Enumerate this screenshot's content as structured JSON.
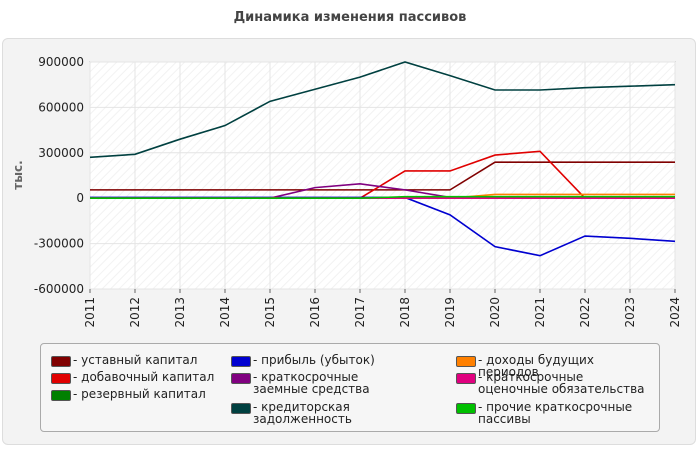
{
  "chart_data": {
    "type": "line",
    "title": "Динамика изменения пассивов",
    "y_label": "тыс.",
    "x": [
      2011,
      2012,
      2013,
      2014,
      2015,
      2016,
      2017,
      2018,
      2019,
      2020,
      2021,
      2022,
      2023,
      2024
    ],
    "xlim": [
      2011,
      2024
    ],
    "ylim": [
      -600000,
      900000
    ],
    "yticks": [
      -600000,
      -300000,
      0,
      300000,
      600000,
      900000
    ],
    "grid": true,
    "series": [
      {
        "name": "- уставный капитал",
        "color": "#800000",
        "values": [
          55000,
          55000,
          55000,
          55000,
          55000,
          55000,
          55000,
          55000,
          55000,
          238000,
          238000,
          238000,
          238000,
          238000
        ]
      },
      {
        "name": "- добавочный капитал",
        "color": "#e00000",
        "values": [
          0,
          0,
          0,
          0,
          0,
          0,
          0,
          180000,
          180000,
          285000,
          310000,
          0,
          0,
          0
        ]
      },
      {
        "name": "- резервный капитал",
        "color": "#008000",
        "values": [
          0,
          0,
          0,
          0,
          0,
          0,
          0,
          0,
          0,
          0,
          0,
          0,
          0,
          0
        ]
      },
      {
        "name": "- прибыль (убыток)",
        "color": "#0000d0",
        "values": [
          5000,
          5000,
          5000,
          5000,
          5000,
          5000,
          5000,
          5000,
          -110000,
          -320000,
          -380000,
          -250000,
          -265000,
          -285000
        ]
      },
      {
        "name": "- краткосрочные заемные средства",
        "color": "#800080",
        "values": [
          0,
          0,
          0,
          0,
          0,
          70000,
          95000,
          55000,
          5000,
          0,
          0,
          0,
          0,
          0
        ]
      },
      {
        "name": "- кредиторская задолженность",
        "color": "#004040",
        "values": [
          270000,
          290000,
          390000,
          480000,
          640000,
          720000,
          800000,
          900000,
          810000,
          715000,
          715000,
          730000,
          740000,
          750000
        ]
      },
      {
        "name": "- доходы будущих периодов",
        "color": "#ff8000",
        "values": [
          0,
          0,
          0,
          0,
          0,
          0,
          0,
          0,
          0,
          25000,
          25000,
          25000,
          25000,
          25000
        ]
      },
      {
        "name": "- краткосрочные оценочные обязательства",
        "color": "#e0007f",
        "values": [
          0,
          0,
          0,
          0,
          0,
          0,
          0,
          0,
          0,
          0,
          0,
          0,
          0,
          0
        ]
      },
      {
        "name": "- прочие краткосрочные пассивы",
        "color": "#00c000",
        "values": [
          0,
          0,
          0,
          0,
          0,
          0,
          0,
          10000,
          10000,
          10000,
          10000,
          10000,
          10000,
          10000
        ]
      }
    ]
  }
}
